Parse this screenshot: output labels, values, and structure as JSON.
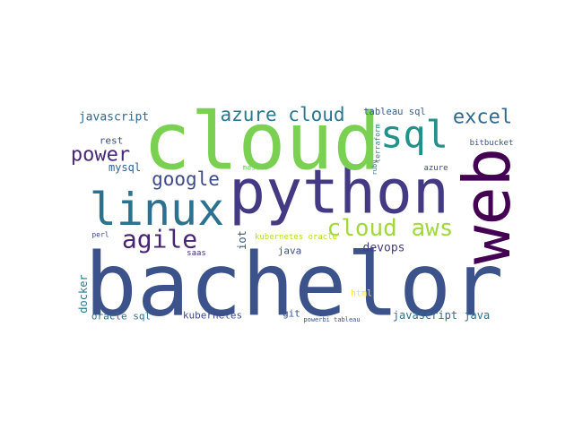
{
  "words": [
    {
      "text": "bachelor",
      "color": "#3b528b"
    },
    {
      "text": "python",
      "color": "#443983"
    },
    {
      "text": "cloud",
      "color": "#7ad151"
    },
    {
      "text": "linux",
      "color": "#2c728e"
    },
    {
      "text": "web",
      "color": "#440154"
    },
    {
      "text": "sql",
      "color": "#21918c"
    },
    {
      "text": "cloud aws",
      "color": "#a0da39"
    },
    {
      "text": "azure cloud",
      "color": "#2a788e"
    },
    {
      "text": "excel",
      "color": "#31688e"
    },
    {
      "text": "power",
      "color": "#482878"
    },
    {
      "text": "google",
      "color": "#3e4a89"
    },
    {
      "text": "agile",
      "color": "#482475"
    },
    {
      "text": "javascript",
      "color": "#31688e"
    },
    {
      "text": "rest",
      "color": "#3e4989"
    },
    {
      "text": "mysql",
      "color": "#355f8d"
    },
    {
      "text": "tableau sql",
      "color": "#355f8d"
    },
    {
      "text": "iot",
      "color": "#3b528b"
    },
    {
      "text": "kubernetes oracle",
      "color": "#b5de2b"
    },
    {
      "text": "java",
      "color": "#3e4a89"
    },
    {
      "text": "devops",
      "color": "#443983"
    },
    {
      "text": "docker",
      "color": "#2a788e"
    },
    {
      "text": "oracle sql",
      "color": "#2c728e"
    },
    {
      "text": "kubernetes",
      "color": "#3e4a89"
    },
    {
      "text": "git",
      "color": "#39568c"
    },
    {
      "text": "javascript java",
      "color": "#2d708e"
    },
    {
      "text": "html",
      "color": "#fde725"
    },
    {
      "text": "bitbucket",
      "color": "#3b528b"
    },
    {
      "text": "master",
      "color": "#6ece58"
    },
    {
      "text": "azure",
      "color": "#3e4a89"
    },
    {
      "text": "terraform",
      "color": "#277f8e"
    },
    {
      "text": "ruby",
      "color": "#31688e"
    },
    {
      "text": "saas",
      "color": "#46327e"
    },
    {
      "text": "perl",
      "color": "#3e4a89"
    },
    {
      "text": "powerbi tableau",
      "color": "#3b528b"
    }
  ]
}
